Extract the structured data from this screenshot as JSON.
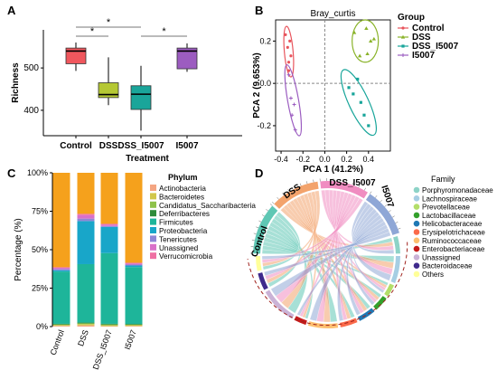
{
  "figure": {
    "panels": [
      {
        "letter": "A"
      },
      {
        "letter": "B"
      },
      {
        "letter": "C"
      },
      {
        "letter": "D"
      }
    ]
  },
  "chart_data": [
    {
      "type": "box",
      "panel": "A",
      "ylabel": "Richness",
      "xlabel": "Treatment",
      "ylim": [
        340,
        590
      ],
      "yticks": [
        400,
        500
      ],
      "categories": [
        "Control",
        "DSS",
        "DSS_I5007",
        "I5007"
      ],
      "colors": [
        "#f0575d",
        "#b5c834",
        "#1aa59a",
        "#9c5cc0"
      ],
      "boxes": [
        {
          "min": 493,
          "q1": 510,
          "median": 540,
          "q3": 547,
          "max": 560
        },
        {
          "min": 412,
          "q1": 430,
          "median": 437,
          "q3": 465,
          "max": 525
        },
        {
          "min": 352,
          "q1": 402,
          "median": 438,
          "q3": 458,
          "max": 505
        },
        {
          "min": 491,
          "q1": 498,
          "median": 540,
          "q3": 547,
          "max": 558
        }
      ],
      "significance": [
        {
          "from": "Control",
          "to": "DSS",
          "label": "*"
        },
        {
          "from": "Control",
          "to": "DSS_I5007",
          "label": "*"
        },
        {
          "from": "DSS_I5007",
          "to": "I5007",
          "label": "*"
        }
      ]
    },
    {
      "type": "scatter",
      "panel": "B",
      "title": "Bray_curtis",
      "xlabel": "PCA 1 (41.2%)",
      "ylabel": "PCA 2 (9.653%)",
      "xlim": [
        -0.45,
        0.6
      ],
      "ylim": [
        -0.32,
        0.3
      ],
      "xticks": [
        -0.4,
        -0.2,
        0.0,
        0.2,
        0.4
      ],
      "yticks": [
        -0.2,
        0.0,
        0.2
      ],
      "legend_title": "Group",
      "series": [
        {
          "name": "Control",
          "color": "#e8545c",
          "marker": "circle",
          "x": [
            -0.36,
            -0.34,
            -0.33,
            -0.32,
            -0.31,
            -0.33
          ],
          "y": [
            0.23,
            0.17,
            0.1,
            0.2,
            0.13,
            0.06
          ]
        },
        {
          "name": "DSS",
          "color": "#8ab32a",
          "marker": "triangle",
          "x": [
            0.27,
            0.32,
            0.38,
            0.42,
            0.45,
            0.39
          ],
          "y": [
            0.24,
            0.13,
            0.26,
            0.2,
            0.21,
            0.14
          ]
        },
        {
          "name": "DSS_I5007",
          "color": "#18a59a",
          "marker": "square",
          "x": [
            0.22,
            0.26,
            0.3,
            0.36,
            0.4,
            0.33
          ],
          "y": [
            -0.02,
            -0.05,
            0.02,
            -0.15,
            -0.2,
            -0.09
          ]
        },
        {
          "name": "I5007",
          "color": "#9b5cc0",
          "marker": "plus",
          "x": [
            -0.33,
            -0.31,
            -0.3,
            -0.28,
            -0.27
          ],
          "y": [
            0.04,
            -0.07,
            -0.15,
            -0.1,
            -0.22
          ]
        }
      ],
      "ellipses": [
        {
          "series": "Control",
          "cx": -0.33,
          "cy": 0.15,
          "rx": 0.04,
          "ry": 0.12,
          "angle": -5
        },
        {
          "series": "DSS",
          "cx": 0.37,
          "cy": 0.2,
          "rx": 0.12,
          "ry": 0.1,
          "angle": 0
        },
        {
          "series": "DSS_I5007",
          "cx": 0.31,
          "cy": -0.09,
          "rx": 0.09,
          "ry": 0.17,
          "angle": -25
        },
        {
          "series": "I5007",
          "cx": -0.29,
          "cy": -0.08,
          "rx": 0.05,
          "ry": 0.17,
          "angle": -10
        }
      ]
    },
    {
      "type": "stacked_bar",
      "panel": "C",
      "ylabel": "Percentage (%)",
      "legend_title": "Phylum",
      "yticks": [
        "0%",
        "25%",
        "50%",
        "75%",
        "100%"
      ],
      "categories": [
        "Control",
        "DSS",
        "DSS_I5007",
        "I5007"
      ],
      "series": [
        {
          "name": "Actinobacteria",
          "color": "#f4a582",
          "values": [
            0.5,
            0.8,
            0.3,
            0.4
          ]
        },
        {
          "name": "Bacteroidetes",
          "color": "#d1c74a",
          "values": [
            0.5,
            0.8,
            0.5,
            0.5
          ]
        },
        {
          "name": "Candidatus_Saccharibacteria",
          "color": "#8ec24a",
          "values": [
            0.3,
            0.5,
            0.5,
            0.3
          ]
        },
        {
          "name": "Deferribacteres",
          "color": "#2e8b3a",
          "values": [
            0.5,
            0.5,
            0.5,
            0.5
          ]
        },
        {
          "name": "Firmicutes",
          "color": "#1eb59a",
          "values": [
            34.0,
            38.0,
            46.0,
            37.0
          ]
        },
        {
          "name": "Proteobacteria",
          "color": "#18a6c9",
          "values": [
            0.8,
            28.0,
            17.0,
            1.0
          ]
        },
        {
          "name": "Tenericutes",
          "color": "#8f86d6",
          "values": [
            0.8,
            1.6,
            0.6,
            0.6
          ]
        },
        {
          "name": "Unassigned",
          "color": "#d970c9",
          "values": [
            0.8,
            2.3,
            1.0,
            0.8
          ]
        },
        {
          "name": "Verrucomicrobia",
          "color": "#ef6fa3",
          "values": [
            0.4,
            0.8,
            0.4,
            0.4
          ]
        },
        {
          "name": "",
          "color": "#f5a11c",
          "values": [
            61.4,
            26.7,
            33.2,
            58.5
          ]
        }
      ]
    },
    {
      "type": "chord",
      "panel": "D",
      "legend_title": "Family",
      "groups": [
        {
          "name": "Control",
          "color": "#5fc7b4"
        },
        {
          "name": "DSS",
          "color": "#f3a36c"
        },
        {
          "name": "DSS_I5007",
          "color": "#f08dc1"
        },
        {
          "name": "I5007",
          "color": "#8fa7d6"
        }
      ],
      "families": [
        {
          "name": "Porphyromonadaceae",
          "color": "#8dd3c7"
        },
        {
          "name": "Lachnospiraceae",
          "color": "#a6cee3"
        },
        {
          "name": "Prevotellaceae",
          "color": "#b3de69"
        },
        {
          "name": "Lactobacillaceae",
          "color": "#33a02c"
        },
        {
          "name": "Helicobacteraceae",
          "color": "#1f78b4"
        },
        {
          "name": "Erysipelotrichaceae",
          "color": "#fb6a4a"
        },
        {
          "name": "Ruminococcaceae",
          "color": "#fdbf6f"
        },
        {
          "name": "Enterobacteriaceae",
          "color": "#c51b1b"
        },
        {
          "name": "Unassigned",
          "color": "#cab2d6"
        },
        {
          "name": "Bacteroidaceae",
          "color": "#3f2a8c"
        },
        {
          "name": "Others",
          "color": "#ffff99"
        }
      ]
    }
  ]
}
